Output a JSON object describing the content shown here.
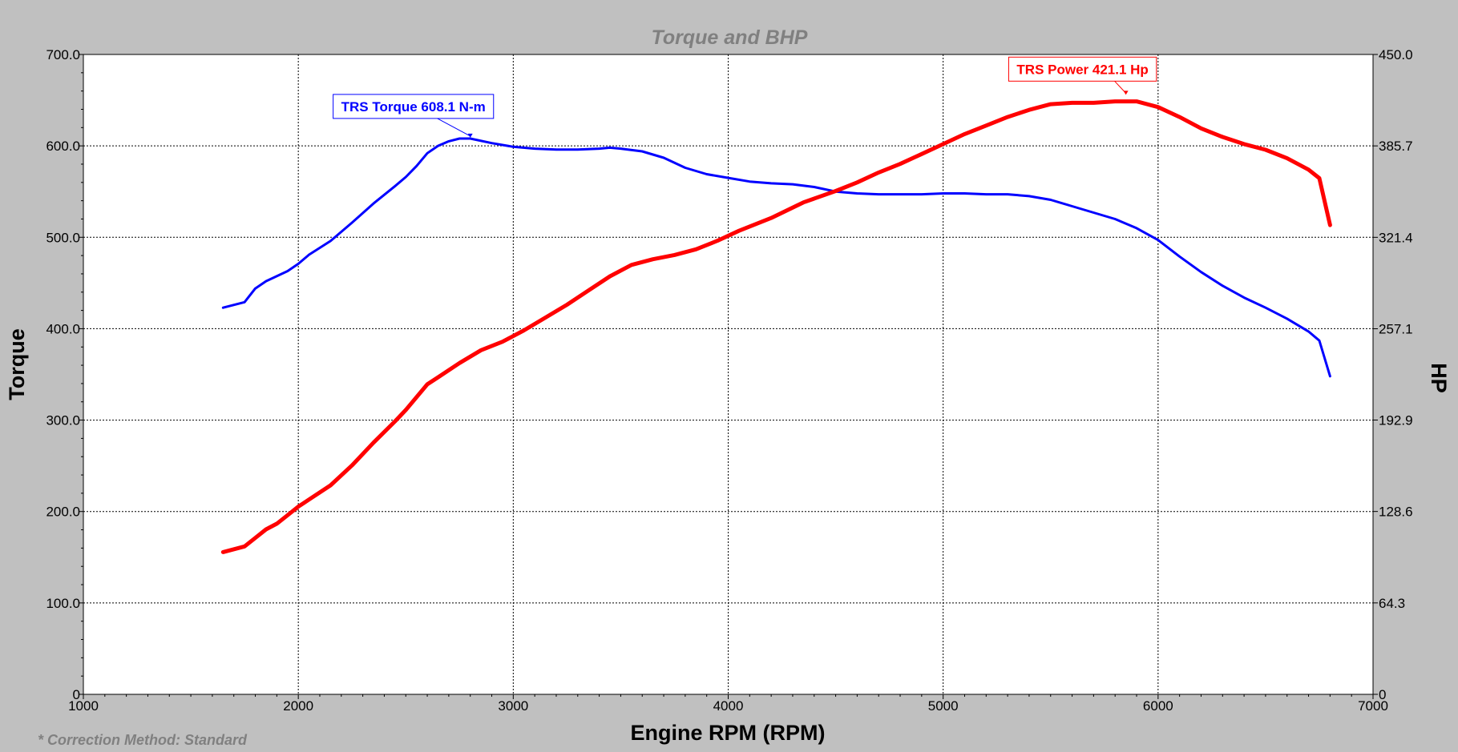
{
  "chart_data": {
    "type": "line",
    "title": "Torque and BHP",
    "xlabel": "Engine RPM (RPM)",
    "ylabel_left": "Torque",
    "ylabel_right": "HP",
    "xlim": [
      1000,
      7000
    ],
    "ylim_left": [
      0,
      700
    ],
    "ylim_right": [
      0,
      450
    ],
    "x_ticks": [
      1000,
      2000,
      3000,
      4000,
      5000,
      6000,
      7000
    ],
    "x_tick_labels": [
      "1000",
      "2000",
      "3000",
      "4000",
      "5000",
      "6000",
      "7000"
    ],
    "y_left_ticks": [
      0,
      100,
      200,
      300,
      400,
      500,
      600,
      700
    ],
    "y_left_tick_labels": [
      "0",
      "100.0",
      "200.0",
      "300.0",
      "400.0",
      "500.0",
      "600.0",
      "700.0"
    ],
    "y_right_ticks": [
      0,
      64.3,
      128.6,
      192.9,
      257.1,
      321.4,
      385.7,
      450
    ],
    "y_right_tick_labels": [
      "0",
      "64.3",
      "128.6",
      "192.9",
      "257.1",
      "321.4",
      "385.7",
      "450.0"
    ],
    "grid": true,
    "note": "* Correction Method: Standard",
    "series": [
      {
        "name": "TRS Torque",
        "axis": "left",
        "color": "#0000ff",
        "x": [
          1650,
          1750,
          1800,
          1850,
          1950,
          2000,
          2050,
          2150,
          2250,
          2350,
          2450,
          2500,
          2550,
          2600,
          2650,
          2700,
          2750,
          2800,
          2900,
          3000,
          3100,
          3200,
          3300,
          3400,
          3450,
          3500,
          3600,
          3700,
          3800,
          3900,
          4000,
          4100,
          4200,
          4300,
          4400,
          4500,
          4600,
          4700,
          4800,
          4900,
          5000,
          5100,
          5200,
          5300,
          5400,
          5500,
          5600,
          5700,
          5800,
          5900,
          6000,
          6100,
          6200,
          6300,
          6400,
          6500,
          6600,
          6700,
          6750,
          6800
        ],
        "y": [
          423,
          429,
          444,
          452,
          463,
          471,
          481,
          496,
          516,
          537,
          556,
          566,
          578,
          592,
          600,
          605,
          608,
          608,
          603,
          599,
          597,
          596,
          596,
          597,
          598,
          597,
          594,
          587,
          576,
          569,
          565,
          561,
          559,
          558,
          555,
          550,
          548,
          547,
          547,
          547,
          548,
          548,
          547,
          547,
          545,
          541,
          534,
          527,
          520,
          510,
          497,
          479,
          462,
          447,
          434,
          423,
          411,
          397,
          387,
          348
        ],
        "peak_label": "TRS Torque 608.1 N-m",
        "peak_x": 2800,
        "peak_y": 608.1
      },
      {
        "name": "TRS Power",
        "axis": "right",
        "color": "#ff0000",
        "x": [
          1650,
          1750,
          1800,
          1850,
          1900,
          1950,
          2000,
          2050,
          2150,
          2250,
          2350,
          2450,
          2500,
          2550,
          2600,
          2650,
          2750,
          2850,
          2950,
          3050,
          3150,
          3250,
          3350,
          3450,
          3550,
          3650,
          3750,
          3850,
          3950,
          4050,
          4200,
          4350,
          4500,
          4600,
          4700,
          4800,
          4900,
          5000,
          5100,
          5200,
          5300,
          5400,
          5500,
          5600,
          5700,
          5800,
          5900,
          6000,
          6100,
          6200,
          6300,
          6400,
          6500,
          6600,
          6700,
          6750,
          6800
        ],
        "y": [
          100,
          104,
          110,
          116,
          120,
          126,
          132,
          137,
          147,
          161,
          177,
          192,
          200,
          209,
          218,
          223,
          233,
          242,
          248,
          256,
          265,
          274,
          284,
          294,
          302,
          306,
          309,
          313,
          319,
          326,
          335,
          346,
          354,
          360,
          367,
          373,
          380,
          387,
          394,
          400,
          406,
          411,
          415,
          416,
          416,
          417,
          417,
          413,
          406,
          398,
          392,
          387,
          383,
          377,
          369,
          363,
          330
        ],
        "peak_label": "TRS Power 421.1 Hp",
        "peak_x": 5850,
        "peak_y": 421.1
      }
    ]
  }
}
